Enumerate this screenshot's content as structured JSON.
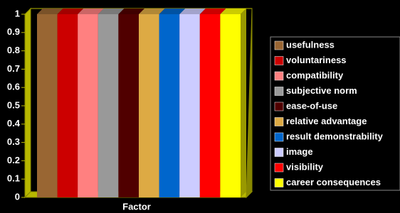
{
  "chart_data": {
    "type": "bar",
    "x_label": "Factor",
    "ylim": [
      0,
      1
    ],
    "yticks": [
      0,
      0.1,
      0.2,
      0.3,
      0.4,
      0.5,
      0.6,
      0.7,
      0.8,
      0.9,
      1
    ],
    "legend": "right",
    "series": [
      {
        "name": "usefulness",
        "color": "#996633",
        "values": [
          1
        ]
      },
      {
        "name": "voluntariness",
        "color": "#cc0000",
        "values": [
          1
        ]
      },
      {
        "name": "compatibility",
        "color": "#ff8080",
        "values": [
          1
        ]
      },
      {
        "name": "subjective norm",
        "color": "#999999",
        "values": [
          1
        ]
      },
      {
        "name": "ease-of-use",
        "color": "#500000",
        "values": [
          1
        ]
      },
      {
        "name": "relative advantage",
        "color": "#ddaa44",
        "values": [
          1
        ]
      },
      {
        "name": "result demonstrability",
        "color": "#0066cc",
        "values": [
          1
        ]
      },
      {
        "name": "image",
        "color": "#ccccff",
        "values": [
          1
        ]
      },
      {
        "name": "visibility",
        "color": "#ff0000",
        "values": [
          1
        ]
      },
      {
        "name": "career consequences",
        "color": "#ffff00",
        "values": [
          1
        ]
      }
    ]
  }
}
